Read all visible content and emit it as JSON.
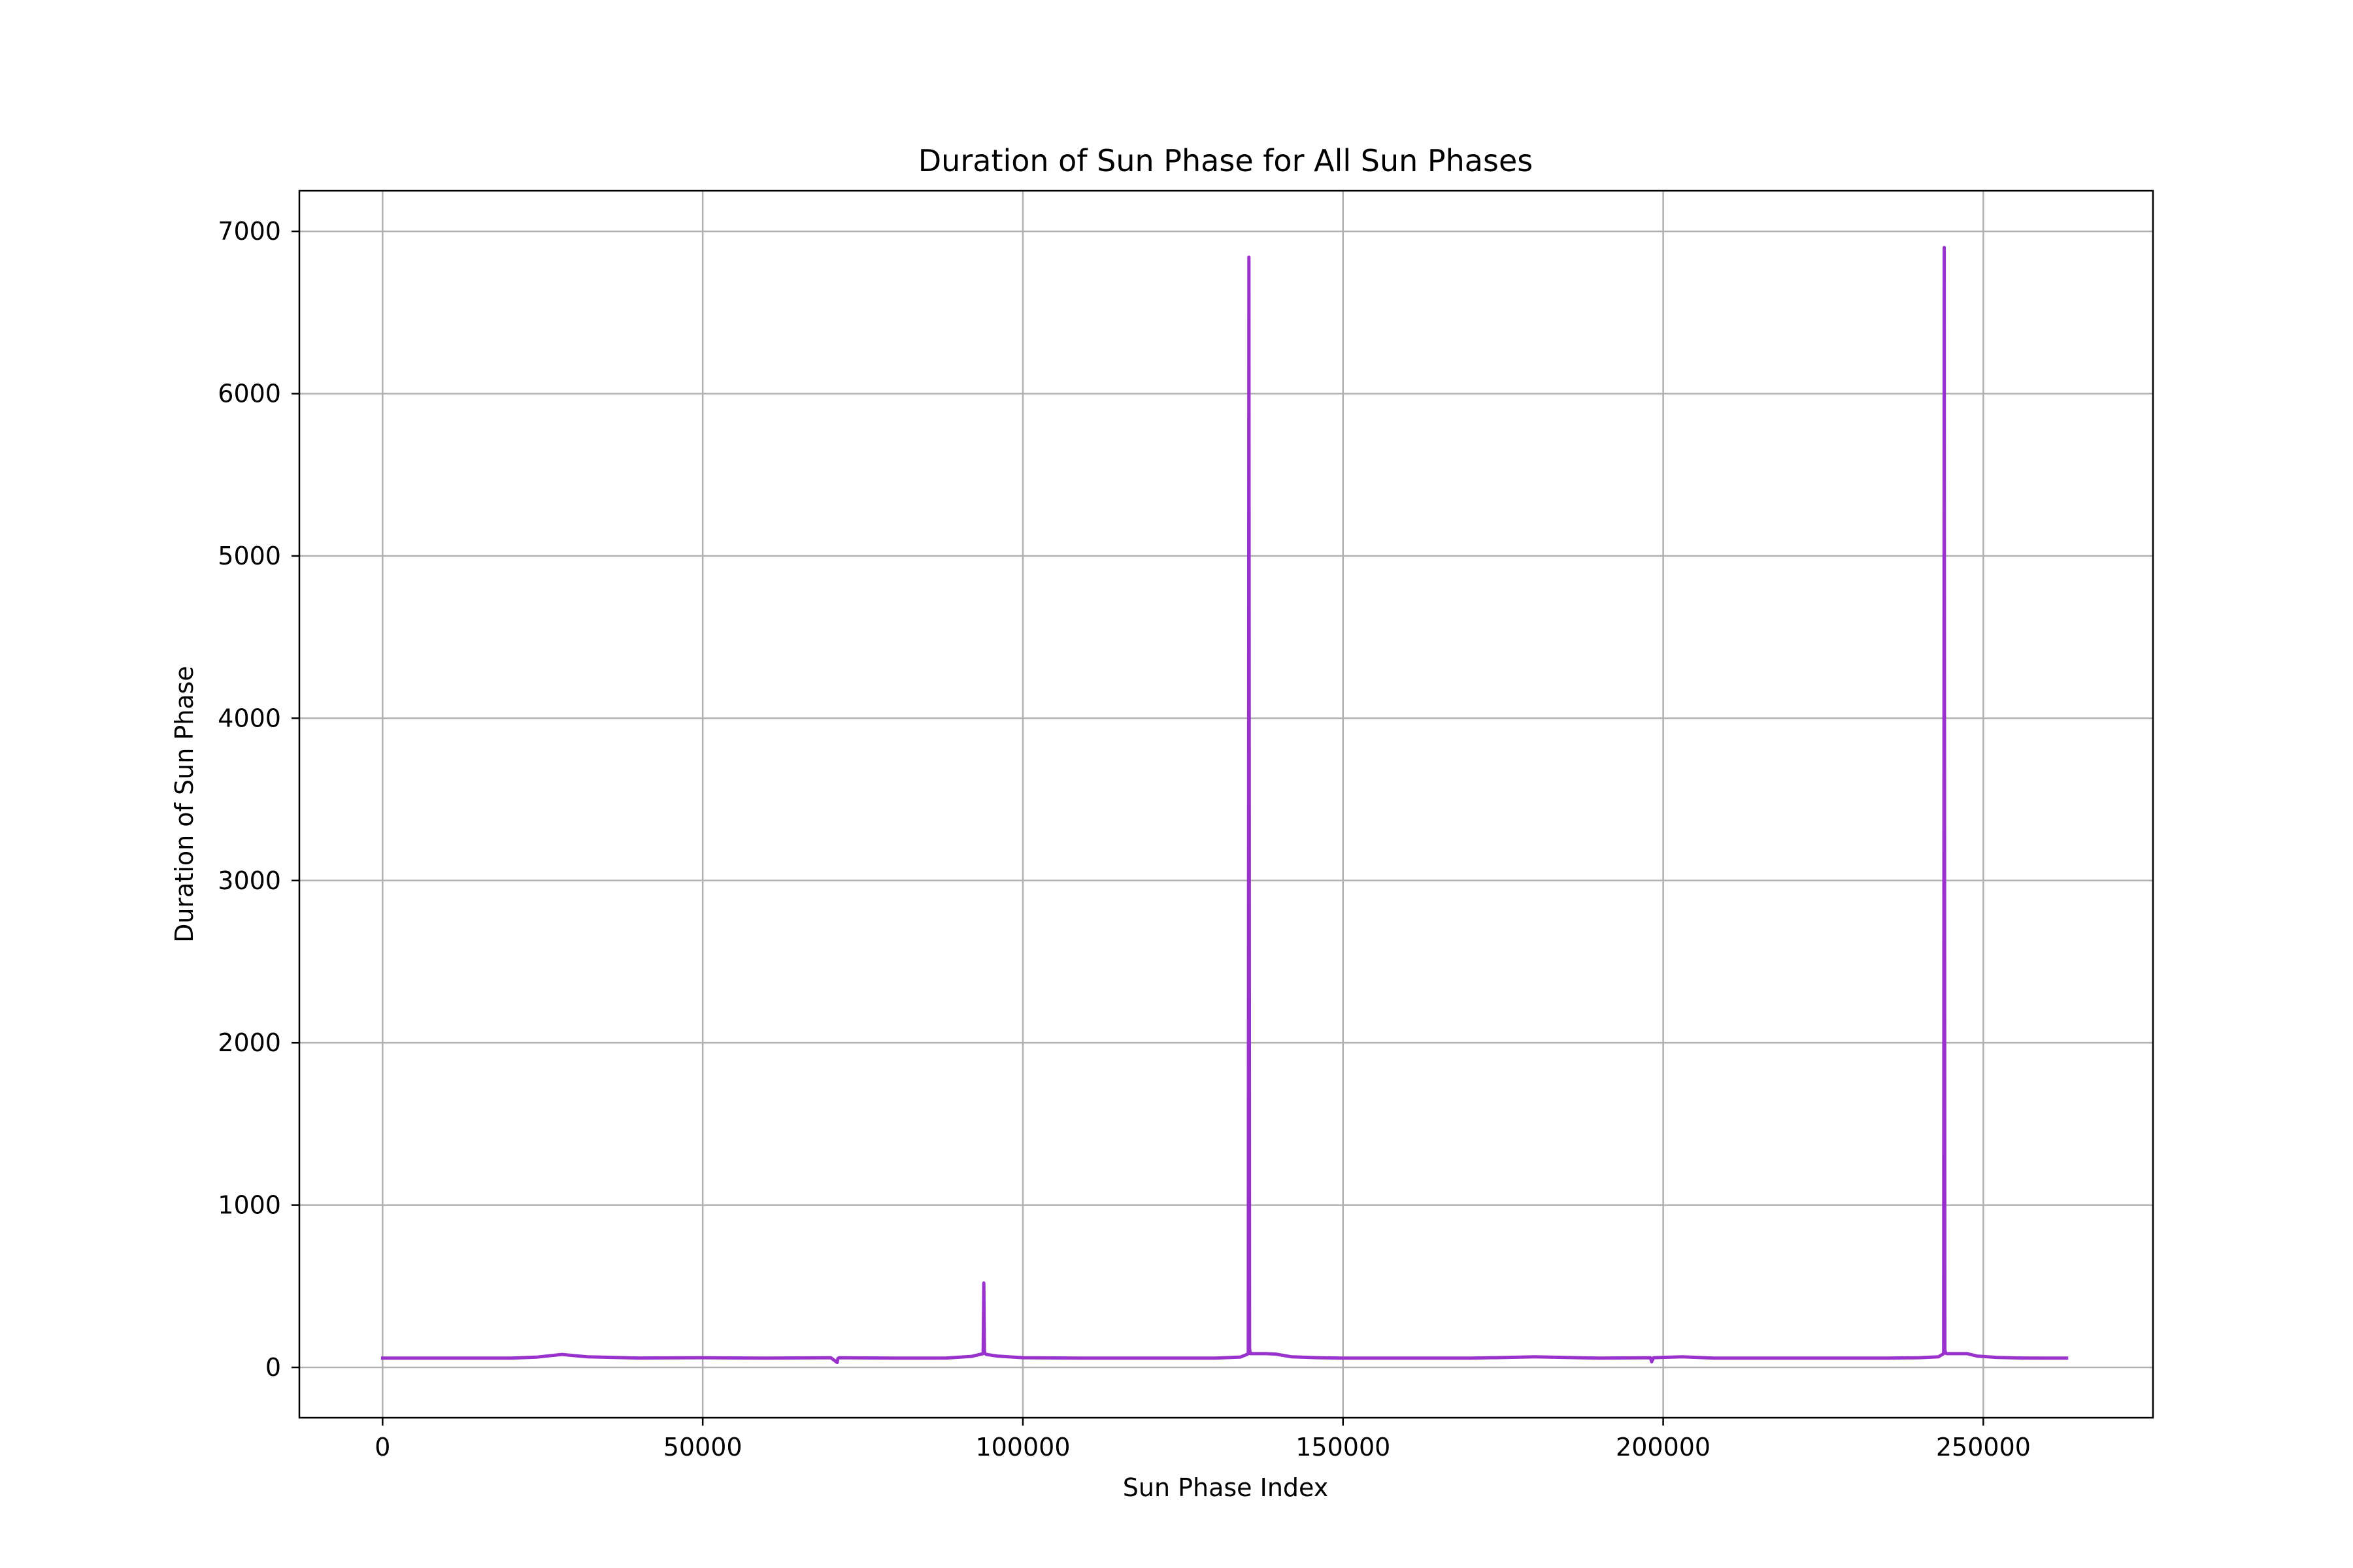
{
  "chart_data": {
    "type": "line",
    "title": "Duration of Sun Phase for All Sun Phases",
    "xlabel": "Sun Phase Index",
    "ylabel": "Duration of Sun Phase",
    "xlim": [
      -13000,
      276500
    ],
    "ylim": [
      -310,
      7250
    ],
    "xticks": [
      0,
      50000,
      100000,
      150000,
      200000,
      250000
    ],
    "yticks": [
      0,
      1000,
      2000,
      3000,
      4000,
      5000,
      6000,
      7000
    ],
    "grid": true,
    "legend": "none",
    "series": [
      {
        "color": "#9932cc",
        "x": [
          0,
          10000,
          20000,
          24000,
          28000,
          32000,
          40000,
          50000,
          60000,
          70000,
          71000,
          71100,
          71300,
          80000,
          88000,
          92000,
          93800,
          93900,
          94000,
          94100,
          94300,
          96000,
          100000,
          110000,
          120000,
          130000,
          134000,
          135000,
          135200,
          135300,
          135400,
          135500,
          136000,
          138000,
          139500,
          142000,
          146000,
          150000,
          160000,
          170000,
          180000,
          190000,
          198000,
          198200,
          198500,
          203000,
          208000,
          215000,
          225000,
          235000,
          240000,
          243000,
          243800,
          243900,
          244000,
          244100,
          244300,
          245000,
          247500,
          249000,
          252000,
          256000,
          260000,
          263000
        ],
        "y": [
          57,
          57,
          57,
          63,
          80,
          65,
          58,
          60,
          57,
          60,
          30,
          55,
          60,
          57,
          58,
          68,
          85,
          520,
          100,
          85,
          80,
          70,
          60,
          57,
          57,
          57,
          64,
          80,
          85,
          6840,
          120,
          85,
          85,
          85,
          82,
          65,
          60,
          57,
          57,
          57,
          65,
          57,
          60,
          35,
          60,
          65,
          57,
          57,
          57,
          57,
          60,
          65,
          85,
          6900,
          110,
          88,
          85,
          85,
          85,
          70,
          62,
          58,
          57,
          57
        ]
      }
    ]
  }
}
